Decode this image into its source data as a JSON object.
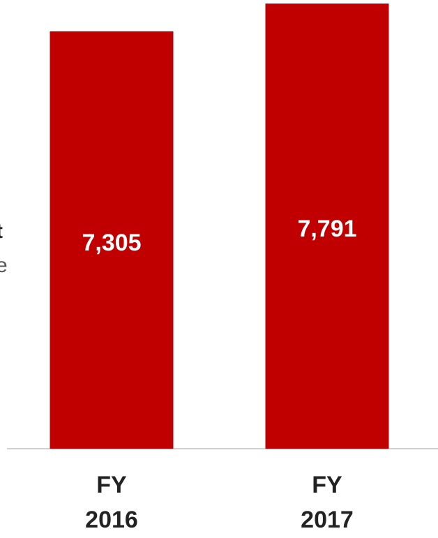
{
  "chart_data": {
    "type": "bar",
    "categories": [
      "FY 2016",
      "FY 2017"
    ],
    "values": [
      7305,
      7791
    ],
    "value_labels": [
      "7,305",
      "7,791"
    ],
    "color": "#c00000",
    "ylim": [
      0,
      8000
    ],
    "annotations": [
      "t",
      "e"
    ]
  }
}
